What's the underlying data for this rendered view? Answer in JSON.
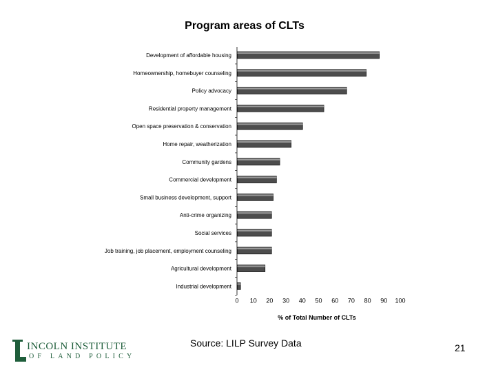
{
  "slide": {
    "source": "Source: LILP Survey Data",
    "page_number": "21"
  },
  "logo": {
    "line1": "INCOLN INSTITUTE",
    "line2": "OF LAND POLICY"
  },
  "colors": {
    "bar_fill": "#4d4d4d",
    "bar_highlight": "#9a9a9a",
    "logo_green": "#1f5e3b"
  },
  "chart_data": {
    "type": "bar",
    "orientation": "horizontal",
    "title": "Program areas of CLTs",
    "xlabel": "% of Total Number of CLTs",
    "ylabel": "",
    "xlim": [
      0,
      100
    ],
    "xticks": [
      0,
      10,
      20,
      30,
      40,
      50,
      60,
      70,
      80,
      90,
      100
    ],
    "grid": false,
    "legend": "none",
    "categories": [
      "Development of affordable housing",
      "Homeownership, homebuyer counseling",
      "Policy advocacy",
      "Residential property management",
      "Open space preservation & conservation",
      "Home repair, weatherization",
      "Community gardens",
      "Commercial development",
      "Small business development, support",
      "Anti-crime organizing",
      "Social services",
      "Job training, job placement, employment counseling",
      "Agricultural development",
      "Industrial development"
    ],
    "values": [
      87,
      79,
      67,
      53,
      40,
      33,
      26,
      24,
      22,
      21,
      21,
      21,
      17,
      2
    ]
  }
}
